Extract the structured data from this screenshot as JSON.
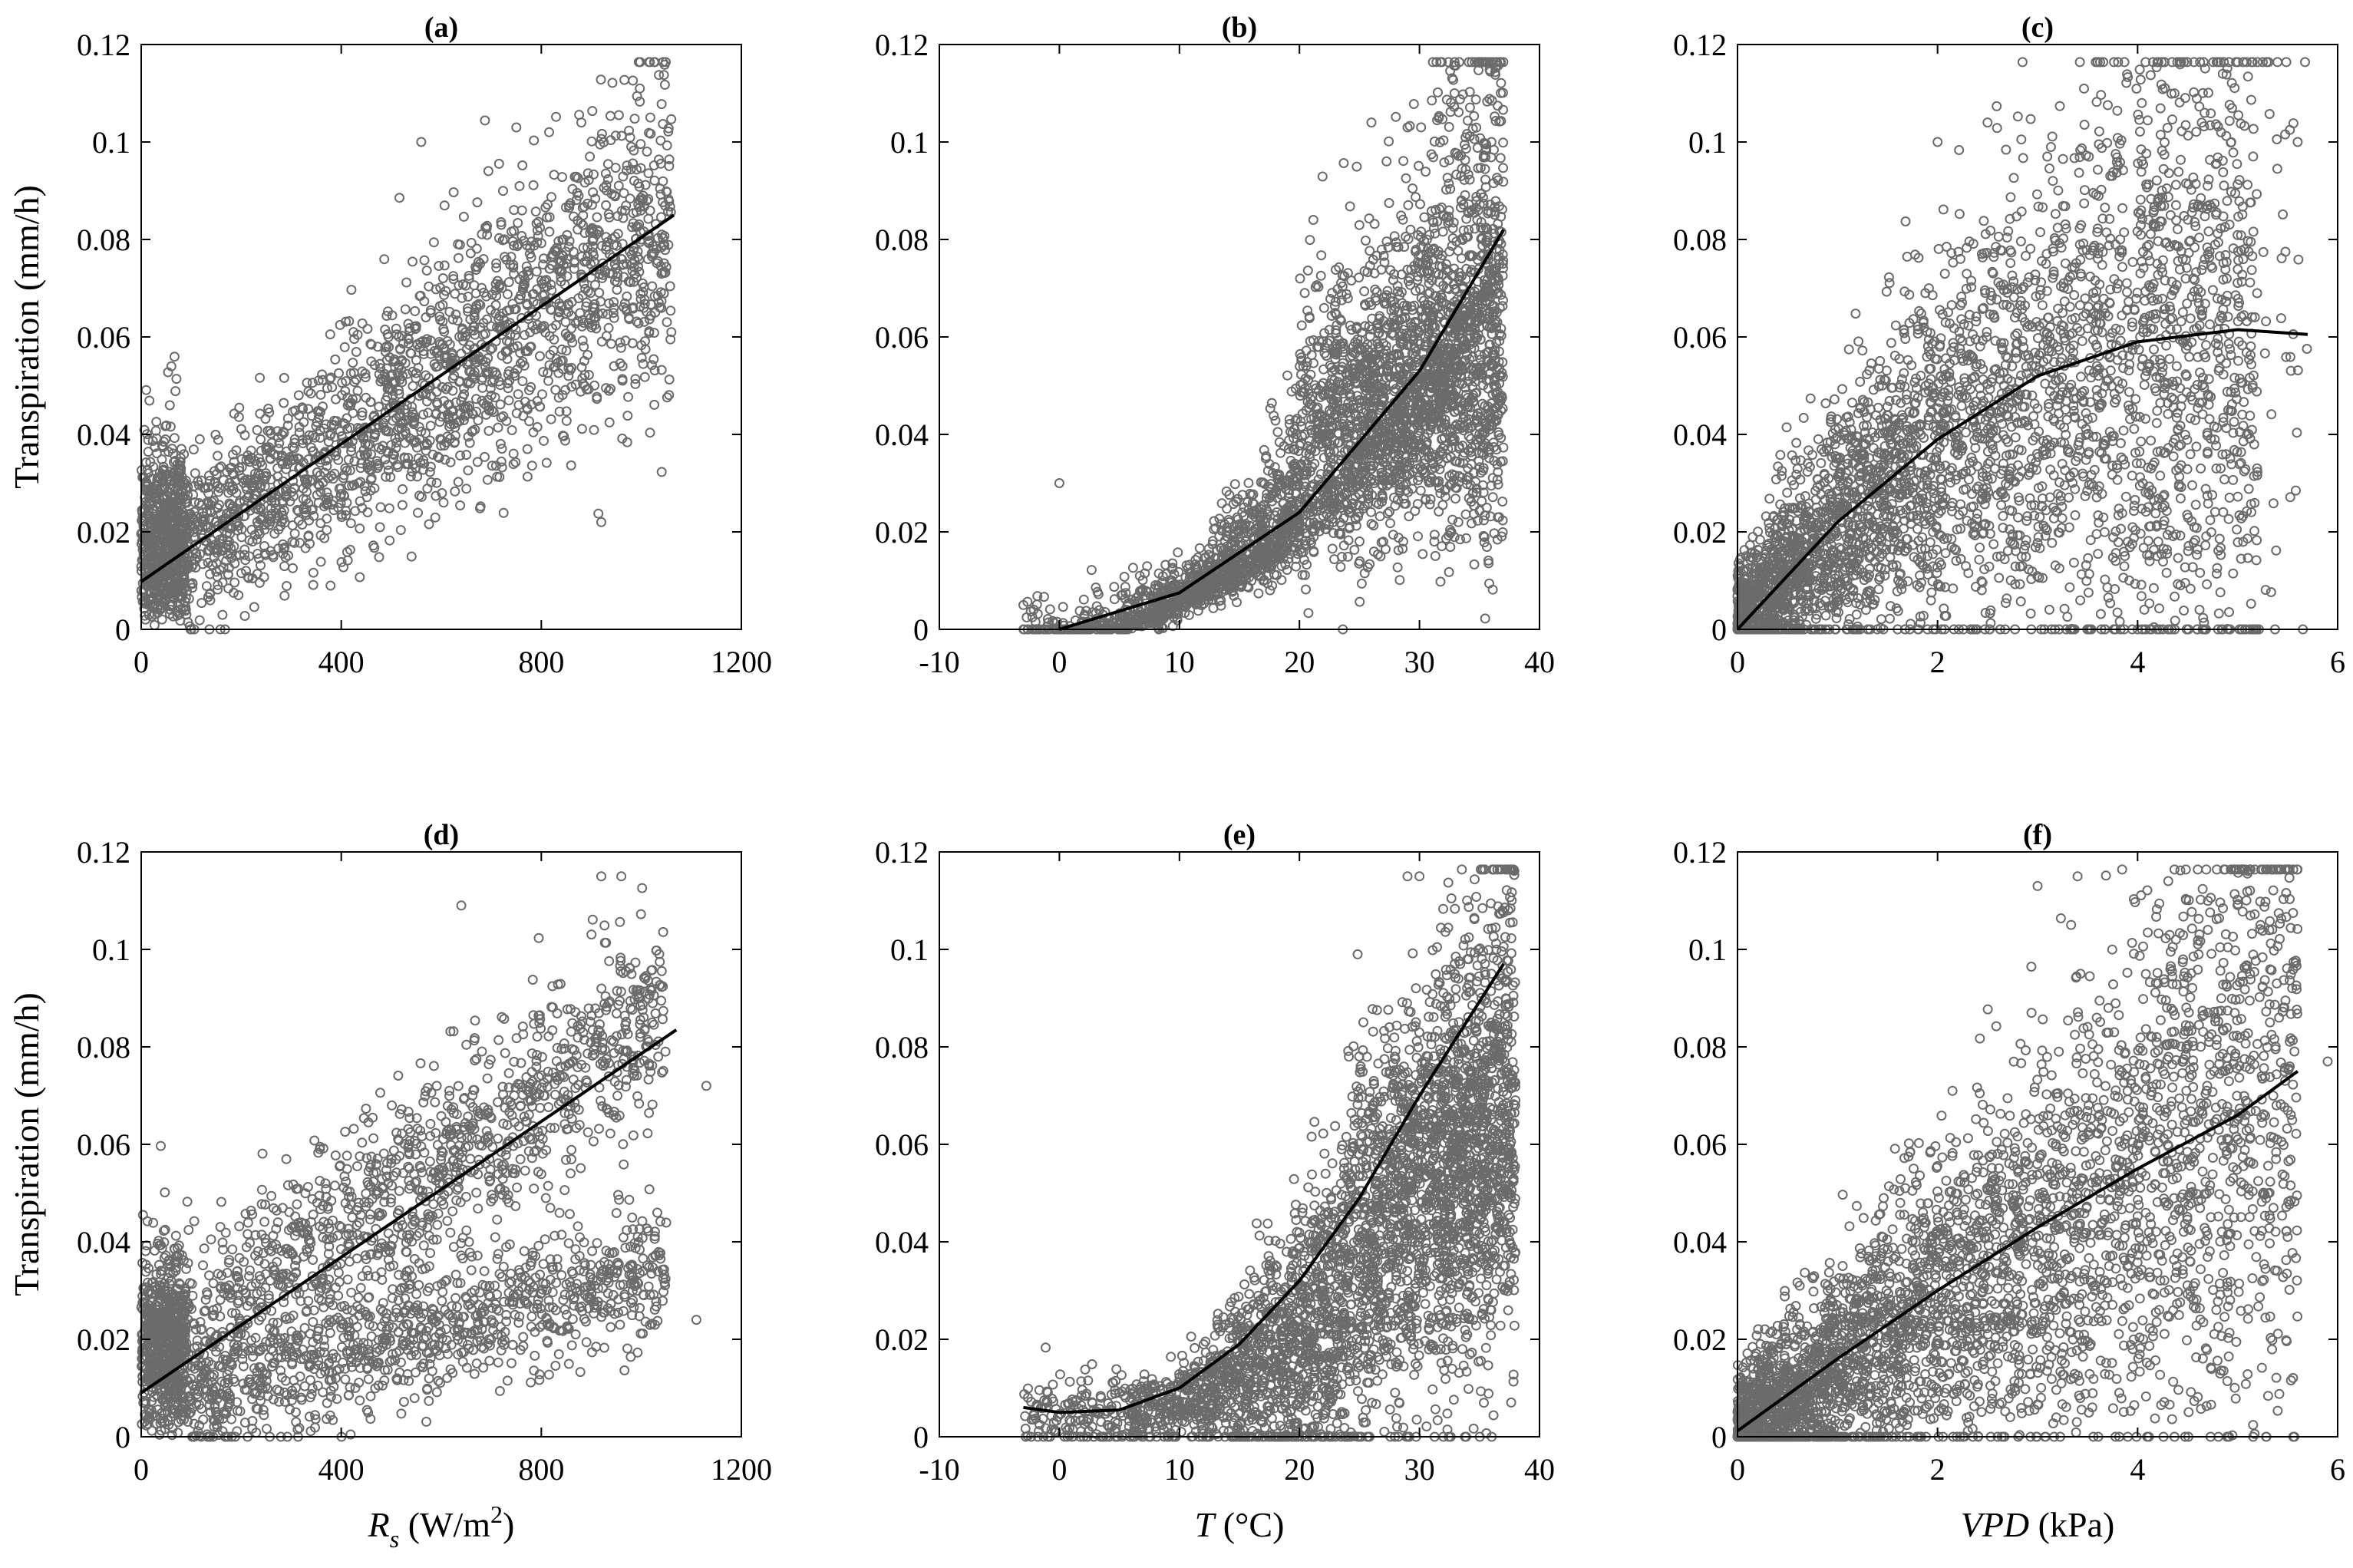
{
  "chart_data": [
    {
      "panel": "a",
      "type": "scatter",
      "title": "(a)",
      "ylabel": "Transpiration (mm/h)",
      "xlabel": "",
      "xlim": [
        0,
        1200
      ],
      "ylim": [
        0,
        0.12
      ],
      "xticks": [
        "0",
        "400",
        "800",
        "1200"
      ],
      "yticks": [
        "0",
        "0.02",
        "0.04",
        "0.06",
        "0.08",
        "0.1",
        "0.12"
      ],
      "fit": {
        "kind": "linear",
        "points": [
          [
            0,
            0.0098
          ],
          [
            1065,
            0.085
          ]
        ]
      },
      "scatter": {
        "x_range": [
          0,
          1060
        ],
        "y_spread": 0.012,
        "count": 2600,
        "note_points": [
          [
            920,
            0.022
          ],
          [
            560,
            0.1
          ],
          [
            750,
            0.103
          ],
          [
            880,
            0.104
          ],
          [
            980,
            0.099
          ],
          [
            1060,
            0.061
          ]
        ]
      }
    },
    {
      "panel": "b",
      "type": "scatter",
      "title": "(b)",
      "ylabel": "",
      "xlabel": "",
      "xlim": [
        -10,
        40
      ],
      "ylim": [
        0,
        0.12
      ],
      "xticks": [
        "-10",
        "0",
        "10",
        "20",
        "30",
        "40"
      ],
      "yticks": [
        "0",
        "0.02",
        "0.04",
        "0.06",
        "0.08",
        "0.1",
        "0.12"
      ],
      "fit": {
        "kind": "quadratic",
        "points": [
          [
            0,
            0.0
          ],
          [
            10,
            0.0075
          ],
          [
            20,
            0.024
          ],
          [
            30,
            0.053
          ],
          [
            37,
            0.082
          ]
        ]
      },
      "scatter": {
        "x_range": [
          -3,
          37
        ],
        "count": 3600,
        "note_points": [
          [
            26,
            0.104
          ],
          [
            29,
            0.103
          ],
          [
            36,
            0.1
          ],
          [
            -3,
            0.005
          ],
          [
            0,
            0.03
          ]
        ]
      }
    },
    {
      "panel": "c",
      "type": "scatter",
      "title": "(c)",
      "ylabel": "",
      "xlabel": "",
      "xlim": [
        0,
        6
      ],
      "ylim": [
        0,
        0.12
      ],
      "xticks": [
        "0",
        "2",
        "4",
        "6"
      ],
      "yticks": [
        "0",
        "0.02",
        "0.04",
        "0.06",
        "0.08",
        "0.1",
        "0.12"
      ],
      "fit": {
        "kind": "quadratic",
        "points": [
          [
            0,
            0.0
          ],
          [
            1,
            0.022
          ],
          [
            2,
            0.039
          ],
          [
            3,
            0.052
          ],
          [
            4,
            0.059
          ],
          [
            5,
            0.0615
          ],
          [
            5.7,
            0.0605
          ]
        ]
      },
      "scatter": {
        "x_range": [
          0,
          5.7
        ],
        "count": 3600,
        "note_points": [
          [
            2.0,
            0.1
          ],
          [
            2.5,
            0.104
          ],
          [
            5.6,
            0.1
          ],
          [
            4.7,
            0.091
          ]
        ]
      }
    },
    {
      "panel": "d",
      "type": "scatter",
      "title": "(d)",
      "ylabel": "Transpiration (mm/h)",
      "xlabel": "R_s (W/m^2)",
      "xlabel_parts": {
        "italic": "R",
        "sub": "s",
        "text": " (W/m",
        "sup": "2",
        "close": ")"
      },
      "xlim": [
        0,
        1200
      ],
      "ylim": [
        0,
        0.12
      ],
      "xticks": [
        "0",
        "400",
        "800",
        "1200"
      ],
      "yticks": [
        "0",
        "0.02",
        "0.04",
        "0.06",
        "0.08",
        "0.1",
        "0.12"
      ],
      "fit": {
        "kind": "linear",
        "points": [
          [
            0,
            0.009
          ],
          [
            1070,
            0.0835
          ]
        ]
      },
      "scatter": {
        "x_range": [
          0,
          1130
        ],
        "count": 2800,
        "note_points": [
          [
            640,
            0.109
          ],
          [
            920,
            0.115
          ],
          [
            960,
            0.115
          ],
          [
            1130,
            0.072
          ],
          [
            1110,
            0.024
          ]
        ]
      }
    },
    {
      "panel": "e",
      "type": "scatter",
      "title": "(e)",
      "ylabel": "",
      "xlabel": "T (°C)",
      "xlabel_parts": {
        "italic": "T",
        "text": " (°C)"
      },
      "xlim": [
        -10,
        40
      ],
      "ylim": [
        0,
        0.12
      ],
      "xticks": [
        "-10",
        "0",
        "10",
        "20",
        "30",
        "40"
      ],
      "yticks": [
        "0",
        "0.02",
        "0.04",
        "0.06",
        "0.08",
        "0.1",
        "0.12"
      ],
      "fit": {
        "kind": "quadratic",
        "points": [
          [
            -3,
            0.006
          ],
          [
            0,
            0.005
          ],
          [
            5,
            0.0055
          ],
          [
            10,
            0.01
          ],
          [
            15,
            0.019
          ],
          [
            20,
            0.032
          ],
          [
            25,
            0.049
          ],
          [
            30,
            0.07
          ],
          [
            37,
            0.097
          ]
        ]
      },
      "scatter": {
        "x_range": [
          -3,
          38
        ],
        "count": 3600,
        "note_points": [
          [
            29,
            0.115
          ],
          [
            30,
            0.115
          ],
          [
            34,
            0.098
          ],
          [
            36,
            0.095
          ]
        ]
      }
    },
    {
      "panel": "f",
      "type": "scatter",
      "title": "(f)",
      "ylabel": "",
      "xlabel": "VPD (kPa)",
      "xlabel_parts": {
        "italic": "VPD",
        "text": " (kPa)"
      },
      "xlim": [
        0,
        6
      ],
      "ylim": [
        0,
        0.12
      ],
      "xticks": [
        "0",
        "2",
        "4",
        "6"
      ],
      "yticks": [
        "0",
        "0.02",
        "0.04",
        "0.06",
        "0.08",
        "0.1",
        "0.12"
      ],
      "fit": {
        "kind": "quadratic",
        "points": [
          [
            0,
            0.0012
          ],
          [
            1,
            0.016
          ],
          [
            2,
            0.03
          ],
          [
            3,
            0.043
          ],
          [
            4,
            0.055
          ],
          [
            5,
            0.066
          ],
          [
            5.6,
            0.075
          ]
        ]
      },
      "scatter": {
        "x_range": [
          0,
          5.9
        ],
        "count": 3600,
        "note_points": [
          [
            3.0,
            0.113
          ],
          [
            3.4,
            0.115
          ],
          [
            5.9,
            0.077
          ],
          [
            5.5,
            0.041
          ]
        ]
      }
    }
  ],
  "style": {
    "point_color": "#6b6b6b",
    "line_color": "#000000",
    "frame_color": "#000000"
  }
}
